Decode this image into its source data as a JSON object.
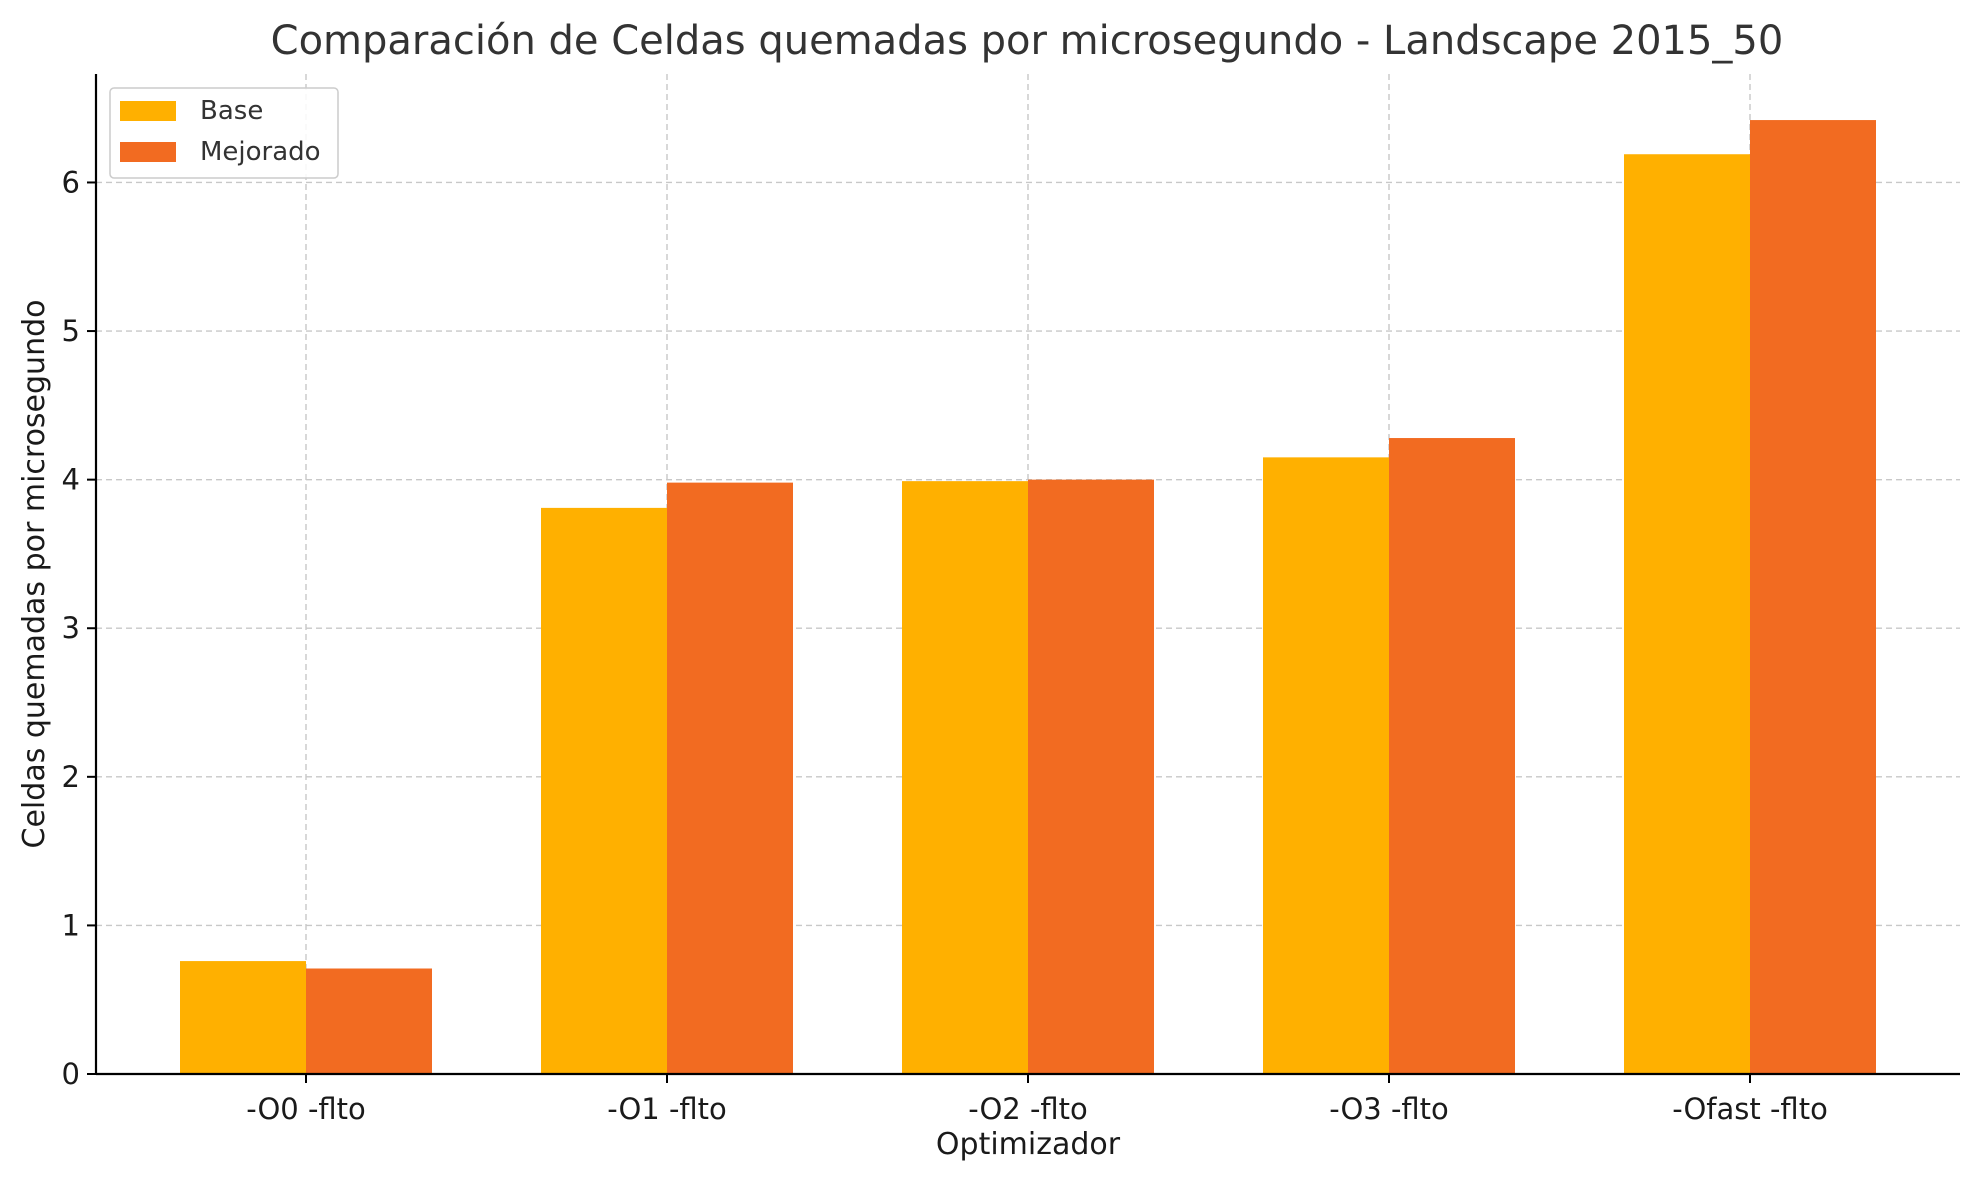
{
  "chart_data": {
    "type": "bar",
    "title": "Comparación de Celdas quemadas por microsegundo - Landscape 2015_50",
    "xlabel": "Optimizador",
    "ylabel": "Celdas quemadas por microsegundo",
    "categories": [
      "-O0 -flto",
      "-O1 -flto",
      "-O2 -flto",
      "-O3 -flto",
      "-Ofast -flto"
    ],
    "series": [
      {
        "name": "Base",
        "color": "#FFB000",
        "values": [
          0.76,
          3.81,
          3.99,
          4.15,
          6.19
        ]
      },
      {
        "name": "Mejorado",
        "color": "#F26B21",
        "values": [
          0.71,
          3.98,
          4.0,
          4.28,
          6.42
        ]
      }
    ],
    "ylim": [
      0,
      6.73
    ],
    "yticks": [
      0,
      1,
      2,
      3,
      4,
      5,
      6
    ],
    "grid": true,
    "legend_position": "top-left"
  }
}
